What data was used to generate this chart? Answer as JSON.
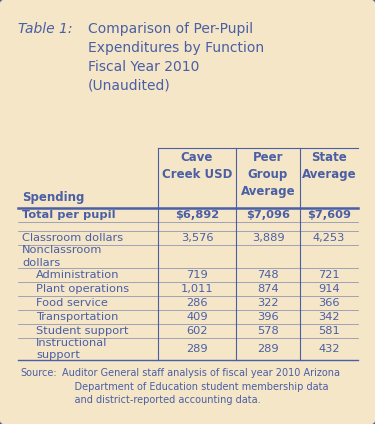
{
  "title_label": "Table 1:",
  "title_text": "Comparison of Per-Pupil\nExpenditures by Function\nFiscal Year 2010\n(Unaudited)",
  "col_headers": [
    "Cave\nCreek USD",
    "Peer\nGroup\nAverage",
    "State\nAverage"
  ],
  "col_header_label": "Spending",
  "rows": [
    {
      "label": "Total per pupil",
      "values": [
        "$6,892",
        "$7,096",
        "$7,609"
      ],
      "bold": true,
      "multiline": false
    },
    {
      "label": "",
      "values": [
        "",
        "",
        ""
      ],
      "bold": false,
      "multiline": false
    },
    {
      "label": "Classroom dollars",
      "values": [
        "3,576",
        "3,889",
        "4,253"
      ],
      "bold": false,
      "multiline": false
    },
    {
      "label": "Nonclassroom\ndollars",
      "values": [
        "",
        "",
        ""
      ],
      "bold": false,
      "multiline": true
    },
    {
      "label": "Administration",
      "values": [
        "719",
        "748",
        "721"
      ],
      "bold": false,
      "multiline": false,
      "indent": true
    },
    {
      "label": "Plant operations",
      "values": [
        "1,011",
        "874",
        "914"
      ],
      "bold": false,
      "multiline": false,
      "indent": true
    },
    {
      "label": "Food service",
      "values": [
        "286",
        "322",
        "366"
      ],
      "bold": false,
      "multiline": false,
      "indent": true
    },
    {
      "label": "Transportation",
      "values": [
        "409",
        "396",
        "342"
      ],
      "bold": false,
      "multiline": false,
      "indent": true
    },
    {
      "label": "Student support",
      "values": [
        "602",
        "578",
        "581"
      ],
      "bold": false,
      "multiline": false,
      "indent": true
    },
    {
      "label": "Instructional\nsupport",
      "values": [
        "289",
        "289",
        "432"
      ],
      "bold": false,
      "multiline": true,
      "indent": true
    }
  ],
  "source_label": "Source:",
  "source_body": "Auditor General staff analysis of fiscal year 2010 Arizona\n    Department of Education student membership data\n    and district-reported accounting data.",
  "bg_color": "#F5E6C8",
  "border_color": "#4a5fa5",
  "text_color": "#4a5fa5",
  "line_color": "#4a5fa5"
}
